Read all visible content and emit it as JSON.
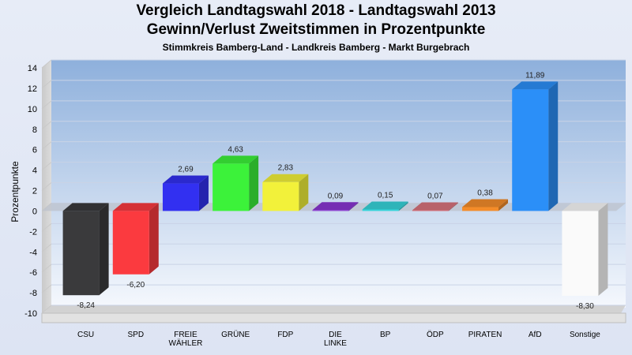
{
  "chart_data": {
    "type": "bar",
    "title": "Vergleich Landtagswahl 2018 - Landtagswahl 2013",
    "subtitle": "Gewinn/Verlust Zweitstimmen in Prozentpunkte",
    "subsubtitle": "Stimmkreis Bamberg-Land - Landkreis Bamberg - Markt Burgebrach",
    "ylabel": "Prozentpunkte",
    "ylim": [
      -10,
      14
    ],
    "yticks": [
      "14",
      "12",
      "10",
      "8",
      "6",
      "4",
      "2",
      "0",
      "-2",
      "-4",
      "-6",
      "-8",
      "-10"
    ],
    "grid": true,
    "bars": [
      {
        "category": [
          "CSU"
        ],
        "value": -8.24,
        "label": "-8,24",
        "color": "#3a3a3c"
      },
      {
        "category": [
          "SPD"
        ],
        "value": -6.2,
        "label": "-6,20",
        "color": "#fb3a3f"
      },
      {
        "category": [
          "FREIE",
          "WÄHLER"
        ],
        "value": 2.69,
        "label": "2,69",
        "color": "#3230f1"
      },
      {
        "category": [
          "GRÜNE"
        ],
        "value": 4.63,
        "label": "4,63",
        "color": "#3cf23a"
      },
      {
        "category": [
          "FDP"
        ],
        "value": 2.83,
        "label": "2,83",
        "color": "#f2f13a"
      },
      {
        "category": [
          "DIE",
          "LINKE"
        ],
        "value": 0.09,
        "label": "0,09",
        "color": "#8a35d2"
      },
      {
        "category": [
          "BP"
        ],
        "value": 0.15,
        "label": "0,15",
        "color": "#36d4da"
      },
      {
        "category": [
          "ÖDP"
        ],
        "value": 0.07,
        "label": "0,07",
        "color": "#d8737d"
      },
      {
        "category": [
          "PIRATEN"
        ],
        "value": 0.38,
        "label": "0,38",
        "color": "#f48c2a"
      },
      {
        "category": [
          "AfD"
        ],
        "value": 11.89,
        "label": "11,89",
        "color": "#2b8ff8"
      },
      {
        "category": [
          "Sonstige"
        ],
        "value": -8.3,
        "label": "-8,30",
        "color": "#fafafa"
      }
    ]
  }
}
